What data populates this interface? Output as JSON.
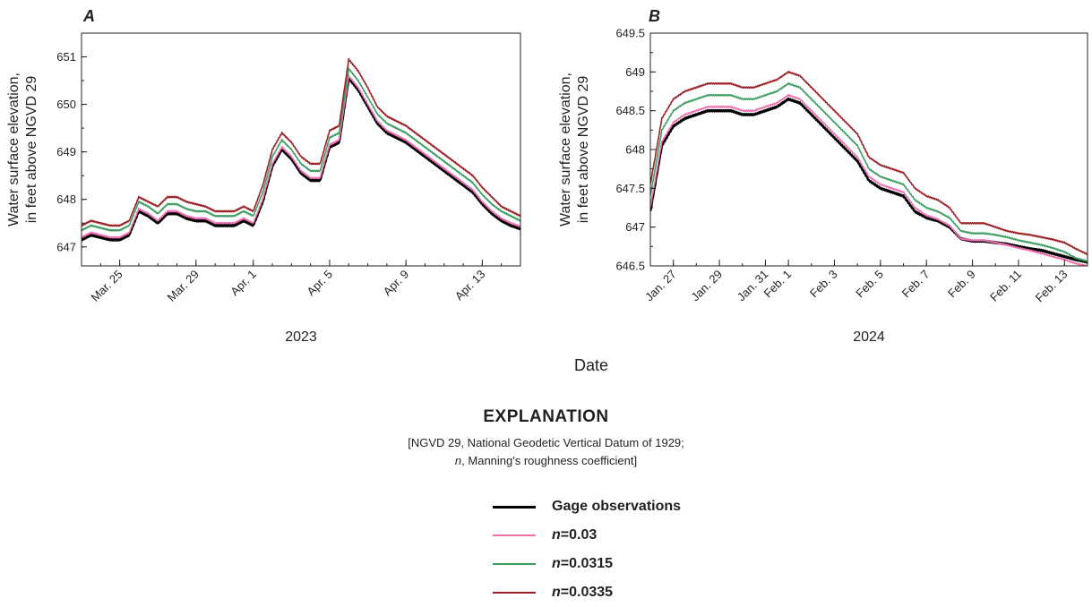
{
  "chart_data": [
    {
      "type": "line",
      "panel": "A",
      "ylabel": [
        "Water surface elevation,",
        "in feet above NGVD 29"
      ],
      "xlabel_year": "2023",
      "x_ticks": [
        "Mar. 25",
        "Mar. 29",
        "Apr. 1",
        "Apr. 5",
        "Apr. 9",
        "Apr. 13"
      ],
      "x_tick_dates": [
        "2023-03-25",
        "2023-03-29",
        "2023-04-01",
        "2023-04-05",
        "2023-04-09",
        "2023-04-13"
      ],
      "xlim": [
        "2023-03-23",
        "2023-04-15"
      ],
      "ylim": [
        646.6,
        651.5
      ],
      "y_ticks": [
        647,
        648,
        649,
        650,
        651
      ],
      "x": [
        "2023-03-23T00:00",
        "2023-03-23T12:00",
        "2023-03-24T00:00",
        "2023-03-24T12:00",
        "2023-03-25T00:00",
        "2023-03-25T12:00",
        "2023-03-26T00:00",
        "2023-03-26T12:00",
        "2023-03-27T00:00",
        "2023-03-27T12:00",
        "2023-03-28T00:00",
        "2023-03-28T12:00",
        "2023-03-29T00:00",
        "2023-03-29T12:00",
        "2023-03-30T00:00",
        "2023-03-30T12:00",
        "2023-03-31T00:00",
        "2023-03-31T12:00",
        "2023-04-01T00:00",
        "2023-04-01T12:00",
        "2023-04-02T00:00",
        "2023-04-02T12:00",
        "2023-04-03T00:00",
        "2023-04-03T12:00",
        "2023-04-04T00:00",
        "2023-04-04T12:00",
        "2023-04-05T00:00",
        "2023-04-05T12:00",
        "2023-04-06T00:00",
        "2023-04-06T12:00",
        "2023-04-07T00:00",
        "2023-04-07T12:00",
        "2023-04-08T00:00",
        "2023-04-08T12:00",
        "2023-04-09T00:00",
        "2023-04-09T12:00",
        "2023-04-10T00:00",
        "2023-04-10T12:00",
        "2023-04-11T00:00",
        "2023-04-11T12:00",
        "2023-04-12T00:00",
        "2023-04-12T12:00",
        "2023-04-13T00:00",
        "2023-04-13T12:00",
        "2023-04-14T00:00",
        "2023-04-14T12:00",
        "2023-04-15T00:00"
      ],
      "series": [
        {
          "name": "Gage observations",
          "color": "#000000",
          "values": [
            647.15,
            647.25,
            647.2,
            647.15,
            647.15,
            647.25,
            647.75,
            647.65,
            647.5,
            647.7,
            647.7,
            647.6,
            647.55,
            647.55,
            647.45,
            647.45,
            647.45,
            647.55,
            647.45,
            647.95,
            648.7,
            649.05,
            648.85,
            648.55,
            648.4,
            648.4,
            649.1,
            649.2,
            650.55,
            650.3,
            649.95,
            649.6,
            649.4,
            649.3,
            649.2,
            649.05,
            648.9,
            648.75,
            648.6,
            648.45,
            648.3,
            648.15,
            647.9,
            647.7,
            647.55,
            647.45,
            647.38
          ]
        },
        {
          "name": "n=0.03",
          "color": "#ef6fb1",
          "values": [
            647.2,
            647.3,
            647.25,
            647.2,
            647.2,
            647.3,
            647.8,
            647.7,
            647.55,
            647.75,
            647.75,
            647.65,
            647.6,
            647.6,
            647.5,
            647.5,
            647.5,
            647.6,
            647.5,
            648.0,
            648.75,
            649.1,
            648.9,
            648.6,
            648.45,
            648.45,
            649.15,
            649.25,
            650.6,
            650.35,
            650.0,
            649.65,
            649.45,
            649.35,
            649.25,
            649.1,
            648.95,
            648.8,
            648.65,
            648.5,
            648.35,
            648.2,
            647.95,
            647.75,
            647.6,
            647.5,
            647.43
          ]
        },
        {
          "name": "n=0.0315",
          "color": "#3f9e64",
          "values": [
            647.35,
            647.45,
            647.4,
            647.35,
            647.35,
            647.45,
            647.95,
            647.85,
            647.7,
            647.9,
            647.9,
            647.8,
            647.75,
            647.75,
            647.65,
            647.65,
            647.65,
            647.75,
            647.65,
            648.15,
            648.9,
            649.25,
            649.05,
            648.75,
            648.6,
            648.6,
            649.3,
            649.4,
            650.75,
            650.5,
            650.15,
            649.8,
            649.6,
            649.5,
            649.4,
            649.25,
            649.1,
            648.95,
            648.8,
            648.65,
            648.5,
            648.35,
            648.1,
            647.9,
            647.75,
            647.65,
            647.55
          ]
        },
        {
          "name": "n=0.0335",
          "color": "#9b2226",
          "values": [
            647.45,
            647.55,
            647.5,
            647.45,
            647.45,
            647.55,
            648.05,
            647.95,
            647.85,
            648.05,
            648.05,
            647.95,
            647.9,
            647.85,
            647.75,
            647.75,
            647.75,
            647.85,
            647.75,
            648.3,
            649.05,
            649.4,
            649.2,
            648.9,
            648.75,
            648.75,
            649.45,
            649.55,
            650.95,
            650.7,
            650.35,
            649.95,
            649.75,
            649.65,
            649.55,
            649.4,
            649.25,
            649.1,
            648.95,
            648.8,
            648.65,
            648.5,
            648.25,
            648.05,
            647.85,
            647.75,
            647.65
          ]
        }
      ]
    },
    {
      "type": "line",
      "panel": "B",
      "ylabel": [
        "Water surface elevation,",
        "in feet above NGVD 29"
      ],
      "xlabel_year": "2024",
      "x_ticks": [
        "Jan. 27",
        "Jan. 29",
        "Jan. 31",
        "Feb. 1",
        "Feb. 3",
        "Feb. 5",
        "Feb. 7",
        "Feb. 9",
        "Feb. 11",
        "Feb. 13"
      ],
      "x_tick_dates": [
        "2024-01-27",
        "2024-01-29",
        "2024-01-31",
        "2024-02-01",
        "2024-02-03",
        "2024-02-05",
        "2024-02-07",
        "2024-02-09",
        "2024-02-11",
        "2024-02-13"
      ],
      "xlim": [
        "2024-01-26",
        "2024-02-14"
      ],
      "ylim": [
        646.5,
        649.5
      ],
      "y_ticks": [
        646.5,
        647,
        647.5,
        648,
        648.5,
        649,
        649.5
      ],
      "x": [
        "2024-01-26T00:00",
        "2024-01-26T12:00",
        "2024-01-27T00:00",
        "2024-01-27T12:00",
        "2024-01-28T00:00",
        "2024-01-28T12:00",
        "2024-01-29T00:00",
        "2024-01-29T12:00",
        "2024-01-30T00:00",
        "2024-01-30T12:00",
        "2024-01-31T00:00",
        "2024-01-31T12:00",
        "2024-02-01T00:00",
        "2024-02-01T12:00",
        "2024-02-02T00:00",
        "2024-02-02T12:00",
        "2024-02-03T00:00",
        "2024-02-03T12:00",
        "2024-02-04T00:00",
        "2024-02-04T12:00",
        "2024-02-05T00:00",
        "2024-02-05T12:00",
        "2024-02-06T00:00",
        "2024-02-06T12:00",
        "2024-02-07T00:00",
        "2024-02-07T12:00",
        "2024-02-08T00:00",
        "2024-02-08T12:00",
        "2024-02-09T00:00",
        "2024-02-09T12:00",
        "2024-02-10T00:00",
        "2024-02-10T12:00",
        "2024-02-11T00:00",
        "2024-02-11T12:00",
        "2024-02-12T00:00",
        "2024-02-12T12:00",
        "2024-02-13T00:00",
        "2024-02-13T12:00",
        "2024-02-14T00:00"
      ],
      "series": [
        {
          "name": "Gage observations",
          "color": "#000000",
          "values": [
            647.2,
            648.05,
            648.3,
            648.4,
            648.45,
            648.5,
            648.5,
            648.5,
            648.45,
            648.45,
            648.5,
            648.55,
            648.65,
            648.6,
            648.45,
            648.3,
            648.15,
            648.0,
            647.85,
            647.6,
            647.5,
            647.45,
            647.4,
            647.2,
            647.12,
            647.08,
            647.0,
            646.85,
            646.82,
            646.82,
            646.8,
            646.78,
            646.75,
            646.72,
            646.7,
            646.66,
            646.62,
            646.58,
            646.55
          ]
        },
        {
          "name": "n=0.03",
          "color": "#ef6fb1",
          "values": [
            647.25,
            648.1,
            648.35,
            648.45,
            648.5,
            648.55,
            648.55,
            648.55,
            648.5,
            648.5,
            648.55,
            648.6,
            648.7,
            648.65,
            648.5,
            648.35,
            648.2,
            648.05,
            647.9,
            647.65,
            647.55,
            647.5,
            647.45,
            647.25,
            647.15,
            647.1,
            647.02,
            646.85,
            646.83,
            646.83,
            646.8,
            646.77,
            646.73,
            646.7,
            646.66,
            646.62,
            646.58,
            646.53,
            646.5
          ]
        },
        {
          "name": "n=0.0315",
          "color": "#3f9e64",
          "values": [
            647.4,
            648.25,
            648.5,
            648.6,
            648.65,
            648.7,
            648.7,
            648.7,
            648.65,
            648.65,
            648.7,
            648.75,
            648.85,
            648.8,
            648.65,
            648.5,
            648.35,
            648.2,
            648.05,
            647.75,
            647.65,
            647.6,
            647.55,
            647.35,
            647.25,
            647.2,
            647.12,
            646.95,
            646.92,
            646.92,
            646.9,
            646.87,
            646.83,
            646.8,
            646.77,
            646.73,
            646.68,
            646.6,
            646.56
          ]
        },
        {
          "name": "n=0.0335",
          "color": "#9b2226",
          "values": [
            647.55,
            648.4,
            648.65,
            648.75,
            648.8,
            648.85,
            648.85,
            648.85,
            648.8,
            648.8,
            648.85,
            648.9,
            649.0,
            648.95,
            648.8,
            648.65,
            648.5,
            648.35,
            648.2,
            647.9,
            647.8,
            647.75,
            647.7,
            647.5,
            647.4,
            647.35,
            647.25,
            647.05,
            647.05,
            647.05,
            647.0,
            646.95,
            646.92,
            646.9,
            646.87,
            646.84,
            646.8,
            646.72,
            646.65
          ]
        }
      ]
    }
  ],
  "shared_xlabel": "Date",
  "explanation": {
    "title": "EXPLANATION",
    "note_line1": "[NGVD 29, National Geodetic Vertical Datum of 1929;",
    "note_line2_italic": "n",
    "note_line2_rest": ", Manning's roughness coefficient]",
    "items": [
      {
        "label": "Gage observations",
        "color": "#000000",
        "italic_prefix": "",
        "text": "Gage observations"
      },
      {
        "label": "n=0.03",
        "color": "#ef6fb1",
        "italic_prefix": "n",
        "text": "=0.03"
      },
      {
        "label": "n=0.0315",
        "color": "#3f9e64",
        "italic_prefix": "n",
        "text": "=0.0315"
      },
      {
        "label": "n=0.0335",
        "color": "#9b2226",
        "italic_prefix": "n",
        "text": "=0.0335"
      }
    ]
  }
}
